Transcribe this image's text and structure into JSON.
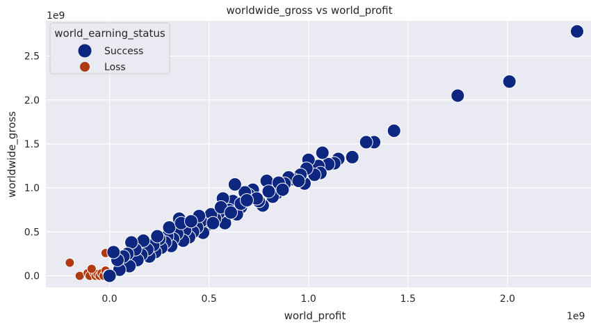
{
  "chart_data": {
    "type": "scatter",
    "title": "worldwide_gross vs world_profit",
    "xlabel": "world_profit",
    "ylabel": "worldwide_gross",
    "x_offset_label": "1e9",
    "y_offset_label": "1e9",
    "xlim": [
      -0.32,
      2.42
    ],
    "ylim": [
      -0.13,
      2.9
    ],
    "x_ticks": [
      0.0,
      0.5,
      1.0,
      1.5,
      2.0
    ],
    "x_tick_labels": [
      "0.0",
      "0.5",
      "1.0",
      "1.5",
      "2.0"
    ],
    "y_ticks": [
      0.0,
      0.5,
      1.0,
      1.5,
      2.0,
      2.5
    ],
    "y_tick_labels": [
      "0.0",
      "0.5",
      "1.0",
      "1.5",
      "2.0",
      "2.5"
    ],
    "grid": true,
    "legend": {
      "title": "world_earning_status",
      "position": "top-left",
      "entries": [
        "Success",
        "Loss"
      ]
    },
    "colors": {
      "Success": "#0d2680",
      "Loss": "#b03a12",
      "background": "#eaeaf2",
      "grid": "#ffffff"
    },
    "series": [
      {
        "name": "Success",
        "points": [
          [
            2.35,
            2.78
          ],
          [
            2.01,
            2.21
          ],
          [
            1.75,
            2.05
          ],
          [
            1.43,
            1.65
          ],
          [
            1.33,
            1.52
          ],
          [
            1.29,
            1.52
          ],
          [
            1.22,
            1.35
          ],
          [
            1.15,
            1.33
          ],
          [
            1.13,
            1.28
          ],
          [
            1.1,
            1.27
          ],
          [
            1.07,
            1.4
          ],
          [
            1.05,
            1.25
          ],
          [
            1.06,
            1.17
          ],
          [
            1.03,
            1.15
          ],
          [
            1.0,
            1.32
          ],
          [
            0.99,
            1.22
          ],
          [
            0.98,
            1.05
          ],
          [
            0.96,
            1.15
          ],
          [
            0.93,
            1.09
          ],
          [
            0.92,
            1.1
          ],
          [
            0.9,
            1.12
          ],
          [
            0.88,
            1.05
          ],
          [
            0.86,
            1.0
          ],
          [
            0.84,
            0.94
          ],
          [
            0.82,
            0.9
          ],
          [
            0.79,
            1.08
          ],
          [
            0.77,
            0.8
          ],
          [
            0.75,
            0.85
          ],
          [
            0.72,
            0.98
          ],
          [
            0.7,
            0.92
          ],
          [
            0.68,
            0.95
          ],
          [
            0.66,
            0.78
          ],
          [
            0.64,
            0.7
          ],
          [
            0.63,
            1.04
          ],
          [
            0.62,
            0.85
          ],
          [
            0.6,
            0.75
          ],
          [
            0.58,
            0.6
          ],
          [
            0.57,
            0.88
          ],
          [
            0.55,
            0.72
          ],
          [
            0.53,
            0.65
          ],
          [
            0.51,
            0.7
          ],
          [
            0.49,
            0.58
          ],
          [
            0.47,
            0.49
          ],
          [
            0.46,
            0.62
          ],
          [
            0.44,
            0.55
          ],
          [
            0.42,
            0.5
          ],
          [
            0.4,
            0.44
          ],
          [
            0.38,
            0.52
          ],
          [
            0.37,
            0.4
          ],
          [
            0.35,
            0.65
          ],
          [
            0.34,
            0.48
          ],
          [
            0.32,
            0.42
          ],
          [
            0.31,
            0.34
          ],
          [
            0.29,
            0.45
          ],
          [
            0.28,
            0.38
          ],
          [
            0.26,
            0.32
          ],
          [
            0.25,
            0.42
          ],
          [
            0.23,
            0.27
          ],
          [
            0.22,
            0.35
          ],
          [
            0.2,
            0.22
          ],
          [
            0.19,
            0.3
          ],
          [
            0.17,
            0.4
          ],
          [
            0.16,
            0.24
          ],
          [
            0.14,
            0.18
          ],
          [
            0.13,
            0.3
          ],
          [
            0.11,
            0.38
          ],
          [
            0.1,
            0.11
          ],
          [
            0.09,
            0.25
          ],
          [
            0.07,
            0.22
          ],
          [
            0.05,
            0.07
          ],
          [
            0.04,
            0.18
          ],
          [
            0.02,
            0.27
          ],
          [
            0.0,
            0.0
          ],
          [
            0.45,
            0.68
          ],
          [
            0.52,
            0.6
          ],
          [
            0.66,
            0.82
          ],
          [
            0.74,
            0.88
          ],
          [
            0.8,
            0.96
          ],
          [
            0.85,
            1.06
          ],
          [
            0.3,
            0.55
          ],
          [
            0.24,
            0.45
          ],
          [
            0.36,
            0.6
          ],
          [
            0.41,
            0.62
          ],
          [
            0.56,
            0.78
          ],
          [
            0.61,
            0.72
          ],
          [
            0.69,
            0.86
          ],
          [
            0.87,
            0.98
          ],
          [
            0.95,
            1.08
          ]
        ]
      },
      {
        "name": "Loss",
        "points": [
          [
            -0.2,
            0.15
          ],
          [
            -0.15,
            0.0
          ],
          [
            -0.11,
            0.03
          ],
          [
            -0.1,
            0.0
          ],
          [
            -0.08,
            0.04
          ],
          [
            -0.07,
            0.0
          ],
          [
            -0.06,
            0.02
          ],
          [
            -0.05,
            0.0
          ],
          [
            -0.04,
            0.03
          ],
          [
            -0.03,
            0.0
          ],
          [
            -0.02,
            0.26
          ],
          [
            -0.02,
            0.06
          ],
          [
            -0.01,
            0.02
          ],
          [
            -0.09,
            0.08
          ]
        ]
      }
    ]
  }
}
